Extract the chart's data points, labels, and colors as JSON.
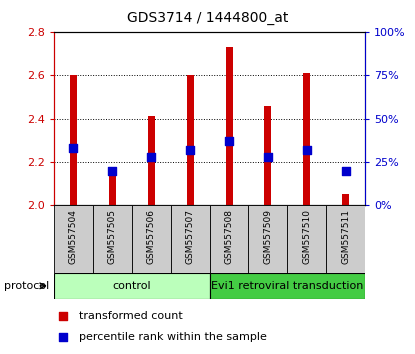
{
  "title": "GDS3714 / 1444800_at",
  "samples": [
    "GSM557504",
    "GSM557505",
    "GSM557506",
    "GSM557507",
    "GSM557508",
    "GSM557509",
    "GSM557510",
    "GSM557511"
  ],
  "transformed_counts": [
    2.6,
    2.15,
    2.41,
    2.6,
    2.73,
    2.46,
    2.61,
    2.05
  ],
  "percentile_ranks": [
    33,
    20,
    28,
    32,
    37,
    28,
    32,
    20
  ],
  "ylim_left": [
    2.0,
    2.8
  ],
  "ylim_right": [
    0,
    100
  ],
  "yticks_left": [
    2.0,
    2.2,
    2.4,
    2.6,
    2.8
  ],
  "yticks_right": [
    0,
    25,
    50,
    75,
    100
  ],
  "ytick_labels_right": [
    "0%",
    "25%",
    "50%",
    "75%",
    "100%"
  ],
  "bar_color": "#cc0000",
  "dot_color": "#0000cc",
  "bar_width": 0.18,
  "dot_size": 30,
  "left_axis_color": "#cc0000",
  "right_axis_color": "#0000cc",
  "protocol_label": "protocol",
  "group_control_color": "#bbffbb",
  "group_evi1_color": "#44cc44",
  "groups": [
    {
      "label": "control",
      "start": 0,
      "end": 3,
      "color": "#bbffbb"
    },
    {
      "label": "Evi1 retroviral transduction",
      "start": 4,
      "end": 7,
      "color": "#44cc44"
    }
  ],
  "legend_items": [
    {
      "label": "transformed count",
      "color": "#cc0000"
    },
    {
      "label": "percentile rank within the sample",
      "color": "#0000cc"
    }
  ],
  "sample_label_bg": "#cccccc",
  "label_fontsize": 6.5,
  "title_fontsize": 10,
  "axis_fontsize": 8,
  "legend_fontsize": 8
}
